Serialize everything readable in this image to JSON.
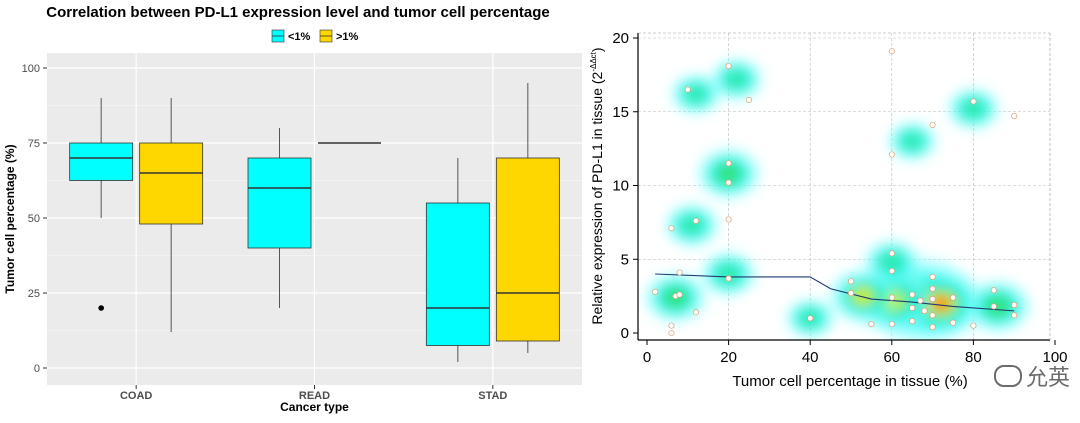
{
  "chart_data": [
    {
      "type": "box",
      "title": "Correlation between PD-L1 expression level and tumor cell percentage",
      "xlabel": "Cancer type",
      "ylabel": "Tumor cell percentage (%)",
      "ylim": [
        0,
        100
      ],
      "yticks": [
        0,
        25,
        50,
        75,
        100
      ],
      "categories": [
        "COAD",
        "READ",
        "STAD"
      ],
      "legend": {
        "position": "top",
        "entries": [
          "<1%",
          ">1%"
        ]
      },
      "colors": {
        "<1%": "#00FFFF",
        ">1%": "#FFD700"
      },
      "series": [
        {
          "name": "<1%",
          "boxes": [
            {
              "category": "COAD",
              "min": 50,
              "q1": 62.5,
              "median": 70,
              "q3": 75,
              "max": 90,
              "outliers": [
                20
              ]
            },
            {
              "category": "READ",
              "min": 20,
              "q1": 40,
              "median": 60,
              "q3": 70,
              "max": 80,
              "outliers": []
            },
            {
              "category": "STAD",
              "min": 2,
              "q1": 7.5,
              "median": 20,
              "q3": 55,
              "max": 70,
              "outliers": []
            }
          ]
        },
        {
          "name": ">1%",
          "boxes": [
            {
              "category": "COAD",
              "min": 12,
              "q1": 48,
              "median": 65,
              "q3": 75,
              "max": 90,
              "outliers": []
            },
            {
              "category": "READ",
              "min": 75,
              "q1": 75,
              "median": 75,
              "q3": 75,
              "max": 75,
              "outliers": []
            },
            {
              "category": "STAD",
              "min": 5,
              "q1": 9,
              "median": 25,
              "q3": 70,
              "max": 95,
              "outliers": []
            }
          ]
        }
      ]
    },
    {
      "type": "scatter",
      "title": "",
      "xlabel": "Tumor cell percentage in tissue (%)",
      "ylabel": "Relative expression of PD-L1 in tissue (2",
      "ylabel_sup": "-ΔΔct",
      "ylabel_end": ")",
      "xlim": [
        0,
        100
      ],
      "ylim": [
        0,
        20
      ],
      "xticks": [
        0,
        20,
        40,
        60,
        80,
        100
      ],
      "yticks": [
        0,
        5,
        10,
        15,
        20
      ],
      "grid": true,
      "density_overlay": true,
      "points": [
        [
          2,
          2.8
        ],
        [
          6,
          0.5
        ],
        [
          6,
          0
        ],
        [
          6,
          7.1
        ],
        [
          7,
          2.5
        ],
        [
          8,
          2.6
        ],
        [
          8,
          4.1
        ],
        [
          10,
          16.5
        ],
        [
          12,
          7.6
        ],
        [
          12,
          1.4
        ],
        [
          20,
          18.1
        ],
        [
          20,
          11.5
        ],
        [
          20,
          10.2
        ],
        [
          20,
          7.7
        ],
        [
          20,
          3.7
        ],
        [
          25,
          15.8
        ],
        [
          40,
          1
        ],
        [
          50,
          3.5
        ],
        [
          50,
          2.7
        ],
        [
          55,
          0.6
        ],
        [
          60,
          19.1
        ],
        [
          60,
          12.1
        ],
        [
          60,
          5.4
        ],
        [
          60,
          4.2
        ],
        [
          60,
          2.4
        ],
        [
          60,
          0.6
        ],
        [
          65,
          2.6
        ],
        [
          65,
          1.7
        ],
        [
          65,
          0.8
        ],
        [
          67,
          2.2
        ],
        [
          68,
          1.5
        ],
        [
          70,
          14.1
        ],
        [
          70,
          3.8
        ],
        [
          70,
          3
        ],
        [
          70,
          2.3
        ],
        [
          70,
          1.2
        ],
        [
          70,
          0.4
        ],
        [
          75,
          0.7
        ],
        [
          75,
          2.4
        ],
        [
          80,
          15.7
        ],
        [
          80,
          0.5
        ],
        [
          85,
          2.9
        ],
        [
          85,
          1.8
        ],
        [
          90,
          14.7
        ],
        [
          90,
          1.9
        ],
        [
          90,
          1.2
        ]
      ],
      "trend": [
        [
          2,
          4
        ],
        [
          20,
          3.8
        ],
        [
          40,
          3.8
        ],
        [
          45,
          3
        ],
        [
          55,
          2.3
        ],
        [
          65,
          2.1
        ],
        [
          75,
          1.8
        ],
        [
          90,
          1.5
        ]
      ],
      "density_hotspots": [
        {
          "x": 67,
          "y": 2.2,
          "intensity": 1.0
        },
        {
          "x": 72,
          "y": 2.0,
          "intensity": 0.7
        },
        {
          "x": 60,
          "y": 2.2,
          "intensity": 0.55
        },
        {
          "x": 53,
          "y": 2.5,
          "intensity": 0.4
        },
        {
          "x": 86,
          "y": 1.8,
          "intensity": 0.35
        },
        {
          "x": 7,
          "y": 2.4,
          "intensity": 0.3
        },
        {
          "x": 20,
          "y": 10.8,
          "intensity": 0.32
        },
        {
          "x": 20,
          "y": 4.0,
          "intensity": 0.2
        },
        {
          "x": 11,
          "y": 7.3,
          "intensity": 0.18
        },
        {
          "x": 22,
          "y": 17.2,
          "intensity": 0.15
        },
        {
          "x": 12,
          "y": 16.2,
          "intensity": 0.12
        },
        {
          "x": 80,
          "y": 15.2,
          "intensity": 0.15
        },
        {
          "x": 65,
          "y": 13.0,
          "intensity": 0.1
        },
        {
          "x": 60,
          "y": 4.8,
          "intensity": 0.2
        },
        {
          "x": 40,
          "y": 1.0,
          "intensity": 0.1
        }
      ]
    }
  ],
  "watermark": {
    "text": "允英"
  }
}
